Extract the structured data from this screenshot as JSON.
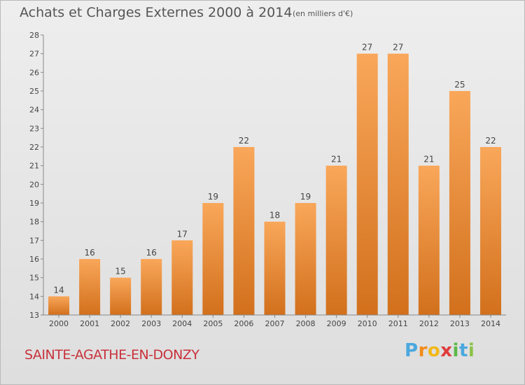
{
  "header": {
    "title": "Achats et Charges Externes 2000 à 2014",
    "subtitle": "(en milliers d'€)"
  },
  "footer": {
    "commune": "SAINTE-AGATHE-EN-DONZY",
    "logo": {
      "p": "P",
      "r": "r",
      "o": "o",
      "x": "x",
      "i1": "i",
      "t": "t",
      "i2": "i"
    }
  },
  "colors": {
    "bar_top": "#f9a75a",
    "bar_bottom": "#d2701c",
    "axis": "#888888",
    "grid": "#cfcfcf"
  },
  "chart_data": {
    "type": "bar",
    "title": "Achats et Charges Externes 2000 à 2014",
    "subtitle": "(en milliers d'€)",
    "categories": [
      "2000",
      "2001",
      "2002",
      "2003",
      "2004",
      "2005",
      "2006",
      "2007",
      "2008",
      "2009",
      "2010",
      "2011",
      "2012",
      "2013",
      "2014"
    ],
    "values": [
      14,
      16,
      15,
      16,
      17,
      19,
      22,
      18,
      19,
      21,
      27,
      27,
      21,
      25,
      22
    ],
    "ylim": [
      13,
      28
    ],
    "yticks": [
      13,
      14,
      15,
      16,
      17,
      18,
      19,
      20,
      21,
      22,
      23,
      24,
      25,
      26,
      27,
      28
    ],
    "grid": false,
    "data_labels": true,
    "legend": "none"
  }
}
